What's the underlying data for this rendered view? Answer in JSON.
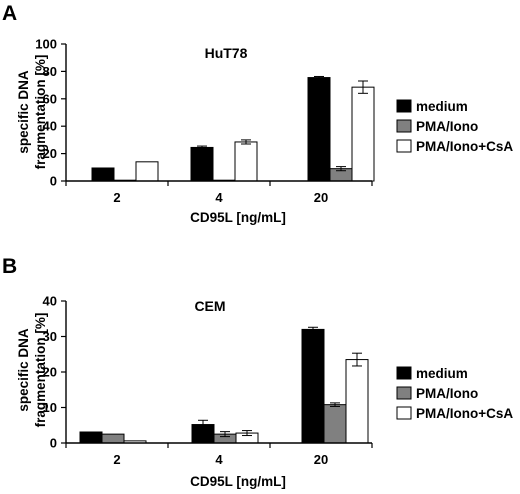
{
  "chart_data": [
    {
      "panel": "A",
      "type": "bar",
      "title": "HuT78",
      "xlabel": "CD95L [ng/mL]",
      "ylabel": "specific DNA fragmentation [%]",
      "ylabel_lines": [
        "specific DNA",
        "fragmentation [%]"
      ],
      "categories": [
        "2",
        "4",
        "20"
      ],
      "ylim": [
        0,
        100
      ],
      "yticks": [
        0,
        20,
        40,
        60,
        80,
        100
      ],
      "grid": false,
      "legend": "right",
      "series": [
        {
          "name": "medium",
          "color": "#000000",
          "values": [
            9.5,
            24.5,
            75.5
          ],
          "errors": [
            0,
            1.0,
            0.8
          ]
        },
        {
          "name": "PMA/Iono",
          "color": "#808080",
          "values": [
            0.5,
            0.5,
            9
          ],
          "errors": [
            0,
            0,
            1.5
          ]
        },
        {
          "name": "PMA/Iono+CsA",
          "color": "#ffffff",
          "values": [
            14,
            28.5,
            68.5
          ],
          "errors": [
            0,
            1.5,
            4.5
          ]
        }
      ]
    },
    {
      "panel": "B",
      "type": "bar",
      "title": "CEM",
      "xlabel": "CD95L [ng/mL]",
      "ylabel": "specific DNA fragmentation [%]",
      "ylabel_lines": [
        "specific DNA",
        "fragmentation [%]"
      ],
      "categories": [
        "2",
        "4",
        "20"
      ],
      "ylim": [
        0,
        40
      ],
      "yticks": [
        0,
        10,
        20,
        30,
        40
      ],
      "grid": false,
      "legend": "right",
      "series": [
        {
          "name": "medium",
          "color": "#000000",
          "values": [
            3.1,
            5.2,
            32
          ],
          "errors": [
            0,
            1.2,
            0.6
          ]
        },
        {
          "name": "PMA/Iono",
          "color": "#808080",
          "values": [
            2.5,
            2.5,
            10.8
          ],
          "errors": [
            0,
            0.7,
            0.5
          ]
        },
        {
          "name": "PMA/Iono+CsA",
          "color": "#ffffff",
          "values": [
            0.6,
            2.8,
            23.5
          ],
          "errors": [
            0,
            0.7,
            1.8
          ]
        }
      ]
    }
  ]
}
